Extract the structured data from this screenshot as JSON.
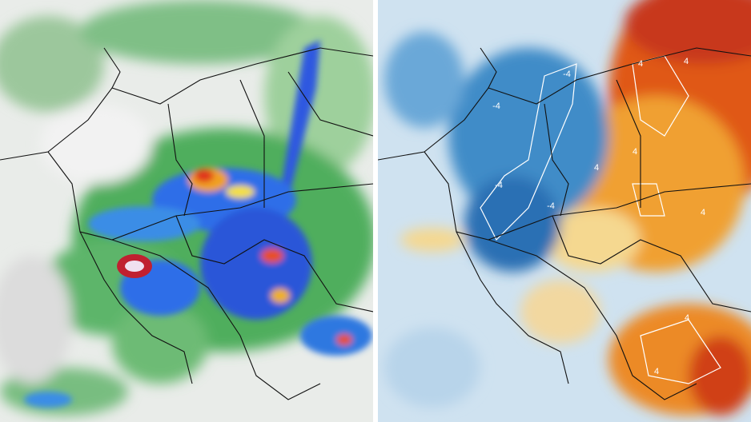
{
  "right_map": {
    "contour_labels": [
      "-4",
      "-4",
      "-4",
      "-4",
      "4",
      "4",
      "4",
      "4",
      "4",
      "4",
      "4"
    ]
  }
}
